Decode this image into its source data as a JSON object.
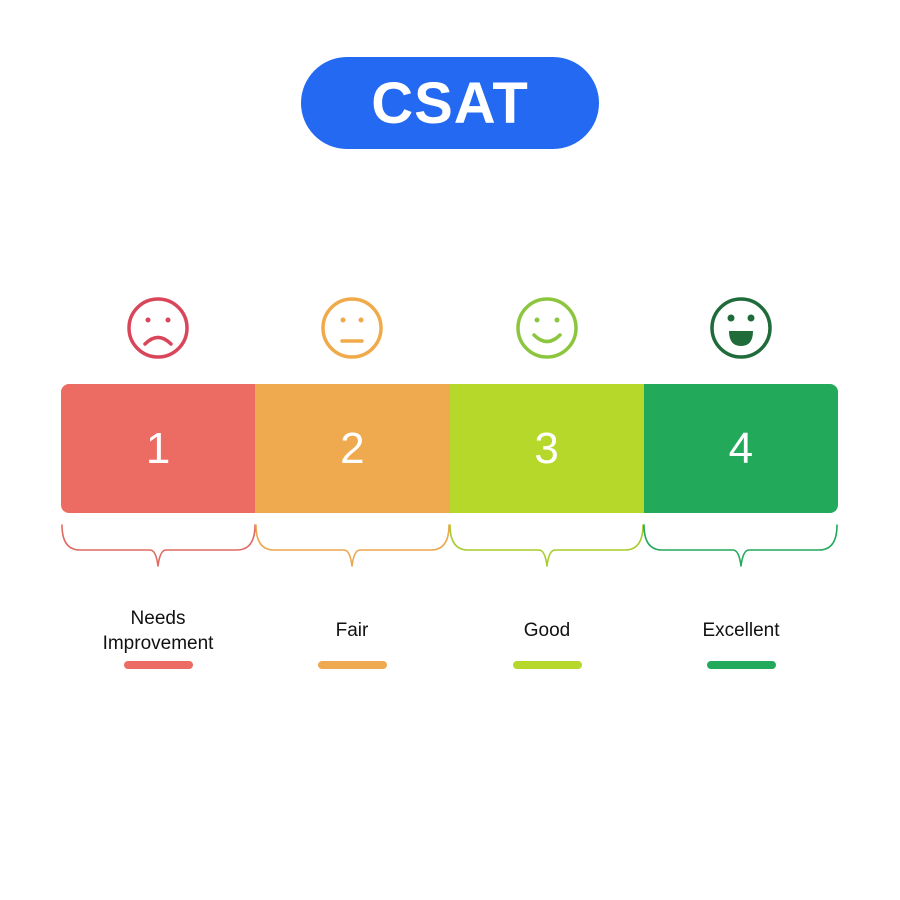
{
  "title": "CSAT",
  "scale": [
    {
      "score": "1",
      "label": "Needs\nImprovement",
      "face": "frowning-face-icon",
      "color": "#ec6b62",
      "face_color": "#d9465a",
      "line_color": "#e06a62"
    },
    {
      "score": "2",
      "label": "Fair",
      "face": "neutral-face-icon",
      "color": "#efaa4f",
      "face_color": "#f0aa4a",
      "line_color": "#eba64f"
    },
    {
      "score": "3",
      "label": "Good",
      "face": "smiling-face-icon",
      "color": "#b6d82a",
      "face_color": "#8cc63f",
      "line_color": "#a8cc2a"
    },
    {
      "score": "4",
      "label": "Excellent",
      "face": "grinning-face-icon",
      "color": "#22a95a",
      "face_color": "#1f6b3a",
      "line_color": "#22a95a"
    }
  ],
  "colors": {
    "title_bg": "#2469f1",
    "title_text": "#ffffff"
  }
}
